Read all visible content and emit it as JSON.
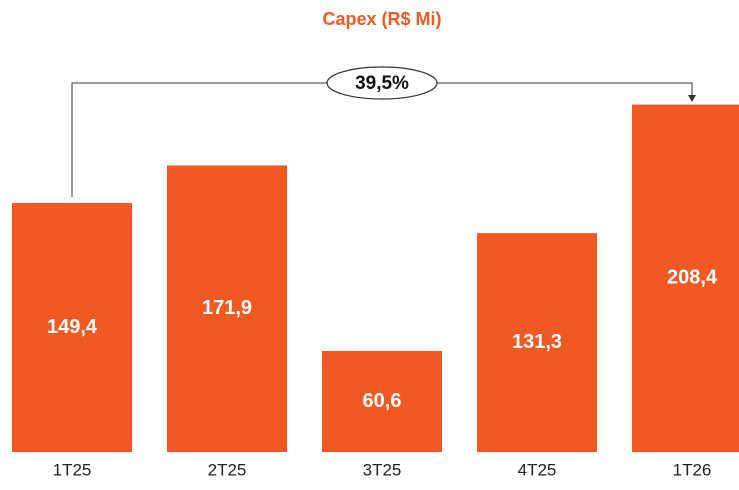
{
  "chart_data": {
    "type": "bar",
    "title": "Capex (R$ Mi)",
    "categories": [
      "1T25",
      "2T25",
      "3T25",
      "4T25",
      "1T26"
    ],
    "values": [
      149.4,
      171.9,
      60.6,
      131.3,
      208.4
    ],
    "value_labels": [
      "149,4",
      "171,9",
      "60,6",
      "131,3",
      "208,4"
    ],
    "color": "#f05a22",
    "annotation": "39,5%"
  }
}
